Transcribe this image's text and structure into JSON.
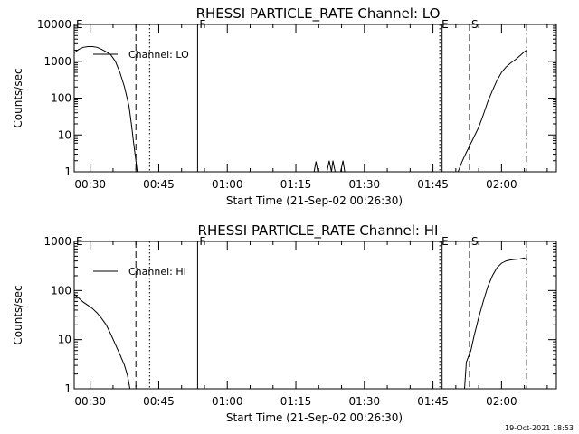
{
  "footer": "19-Oct-2021 18:53",
  "chart_data": [
    {
      "type": "line",
      "title": "RHESSI PARTICLE_RATE Channel: LO",
      "xlabel": "Start Time (21-Sep-02 00:26:30)",
      "ylabel": "Counts/sec",
      "yscale": "log",
      "ylim": [
        1,
        10000
      ],
      "xlim": [
        0,
        105.5
      ],
      "xticks": [
        {
          "v": 3.5,
          "label": "00:30"
        },
        {
          "v": 18.5,
          "label": "00:45"
        },
        {
          "v": 33.5,
          "label": "01:00"
        },
        {
          "v": 48.5,
          "label": "01:15"
        },
        {
          "v": 63.5,
          "label": "01:30"
        },
        {
          "v": 78.5,
          "label": "01:45"
        },
        {
          "v": 93.5,
          "label": "02:00"
        }
      ],
      "yticks": [
        {
          "v": 1,
          "label": "1"
        },
        {
          "v": 10,
          "label": "10"
        },
        {
          "v": 100,
          "label": "100"
        },
        {
          "v": 1000,
          "label": "1000"
        },
        {
          "v": 10000,
          "label": "10000"
        }
      ],
      "legend": {
        "label": "Channel: LO",
        "position": "top-left"
      },
      "markers": [
        {
          "x": 0.0,
          "label": "E",
          "style": "solid"
        },
        {
          "x": 13.5,
          "label": "",
          "style": "dashed"
        },
        {
          "x": 16.5,
          "label": "",
          "style": "dotted"
        },
        {
          "x": 27.0,
          "label": "F",
          "style": "solid"
        },
        {
          "x": 80.0,
          "label": "E",
          "style": "dotted"
        },
        {
          "x": 80.5,
          "label": "",
          "style": "solid"
        },
        {
          "x": 86.5,
          "label": "S",
          "style": "dashed"
        },
        {
          "x": 99.0,
          "label": "",
          "style": "dashdot"
        }
      ],
      "series": [
        {
          "points": [
            [
              0,
              1700
            ],
            [
              1,
              2100
            ],
            [
              2,
              2400
            ],
            [
              3,
              2500
            ],
            [
              4,
              2500
            ],
            [
              5,
              2400
            ],
            [
              6,
              2100
            ],
            [
              7,
              1800
            ],
            [
              8,
              1500
            ],
            [
              9,
              1000
            ],
            [
              10,
              500
            ],
            [
              11,
              200
            ],
            [
              12,
              60
            ],
            [
              12.5,
              20
            ],
            [
              13,
              6
            ],
            [
              13.5,
              2
            ],
            [
              13.8,
              1
            ]
          ]
        },
        {
          "points": [
            [
              52.5,
              1
            ],
            [
              52.9,
              1.9
            ],
            [
              53.3,
              1
            ],
            [
              55.3,
              1
            ],
            [
              55.8,
              2
            ],
            [
              56.3,
              1
            ],
            [
              56.6,
              2
            ],
            [
              57.1,
              1
            ],
            [
              58.3,
              1
            ],
            [
              58.8,
              2
            ],
            [
              59.2,
              1
            ]
          ]
        },
        {
          "points": [
            [
              84.0,
              1
            ],
            [
              84.8,
              1.8
            ],
            [
              85.6,
              3
            ],
            [
              86.5,
              5
            ],
            [
              87.5,
              9
            ],
            [
              88.5,
              16
            ],
            [
              89.5,
              35
            ],
            [
              90.5,
              80
            ],
            [
              91.5,
              160
            ],
            [
              92.5,
              300
            ],
            [
              93.5,
              500
            ],
            [
              94.5,
              700
            ],
            [
              95.5,
              900
            ],
            [
              96.5,
              1100
            ],
            [
              97.5,
              1400
            ],
            [
              98.5,
              1800
            ],
            [
              99.0,
              2000
            ]
          ]
        }
      ]
    },
    {
      "type": "line",
      "title": "RHESSI PARTICLE_RATE Channel: HI",
      "xlabel": "Start Time (21-Sep-02 00:26:30)",
      "ylabel": "Counts/sec",
      "yscale": "log",
      "ylim": [
        1,
        1000
      ],
      "xlim": [
        0,
        105.5
      ],
      "xticks": [
        {
          "v": 3.5,
          "label": "00:30"
        },
        {
          "v": 18.5,
          "label": "00:45"
        },
        {
          "v": 33.5,
          "label": "01:00"
        },
        {
          "v": 48.5,
          "label": "01:15"
        },
        {
          "v": 63.5,
          "label": "01:30"
        },
        {
          "v": 78.5,
          "label": "01:45"
        },
        {
          "v": 93.5,
          "label": "02:00"
        }
      ],
      "yticks": [
        {
          "v": 1,
          "label": "1"
        },
        {
          "v": 10,
          "label": "10"
        },
        {
          "v": 100,
          "label": "100"
        },
        {
          "v": 1000,
          "label": "1000"
        }
      ],
      "legend": {
        "label": "Channel: HI",
        "position": "top-left"
      },
      "markers": [
        {
          "x": 0.0,
          "label": "E",
          "style": "solid"
        },
        {
          "x": 13.5,
          "label": "",
          "style": "dashed"
        },
        {
          "x": 16.5,
          "label": "",
          "style": "dotted"
        },
        {
          "x": 27.0,
          "label": "F",
          "style": "solid"
        },
        {
          "x": 80.0,
          "label": "E",
          "style": "dotted"
        },
        {
          "x": 80.5,
          "label": "",
          "style": "solid"
        },
        {
          "x": 86.5,
          "label": "S",
          "style": "dashed"
        },
        {
          "x": 99.0,
          "label": "",
          "style": "dashdot"
        }
      ],
      "series": [
        {
          "points": [
            [
              0,
              85
            ],
            [
              1,
              70
            ],
            [
              2,
              58
            ],
            [
              3,
              50
            ],
            [
              4,
              43
            ],
            [
              5,
              35
            ],
            [
              6,
              27
            ],
            [
              7,
              20
            ],
            [
              8,
              13
            ],
            [
              9,
              8
            ],
            [
              10,
              5
            ],
            [
              11,
              3
            ],
            [
              11.7,
              1.8
            ],
            [
              12.2,
              1
            ]
          ]
        },
        {
          "points": [
            [
              85.4,
              1
            ],
            [
              85.8,
              3.5
            ],
            [
              86.8,
              6
            ],
            [
              87.5,
              12
            ],
            [
              88.5,
              28
            ],
            [
              89.5,
              60
            ],
            [
              90.5,
              120
            ],
            [
              91.5,
              200
            ],
            [
              92.5,
              290
            ],
            [
              93.5,
              360
            ],
            [
              94.5,
              400
            ],
            [
              95.5,
              420
            ],
            [
              96.5,
              430
            ],
            [
              97.5,
              440
            ],
            [
              98.5,
              460
            ],
            [
              99.0,
              420
            ]
          ]
        }
      ]
    }
  ]
}
